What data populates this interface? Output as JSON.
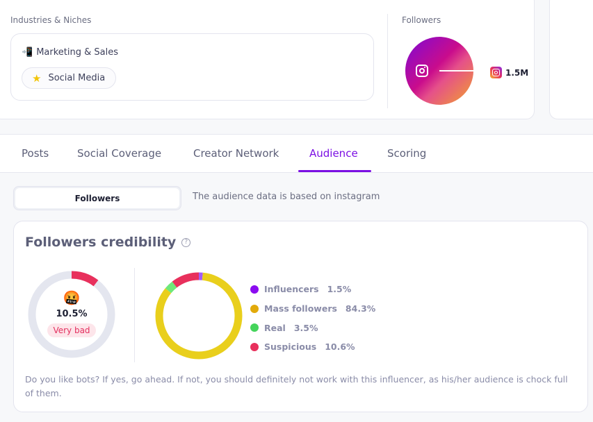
{
  "industries": {
    "label": "Industries & Niches",
    "category": {
      "emoji": "📲",
      "label": "Marketing & Sales"
    },
    "chip": {
      "icon": "star-icon",
      "label": "Social Media"
    }
  },
  "followers": {
    "label": "Followers",
    "platform": "instagram",
    "value": "1.5M"
  },
  "tabs": [
    {
      "label": "Posts"
    },
    {
      "label": "Social Coverage"
    },
    {
      "label": "Creator Network"
    },
    {
      "label": "Audience",
      "active": true
    },
    {
      "label": "Scoring"
    }
  ],
  "segment": {
    "active": "Followers"
  },
  "note": "The audience data is based on instagram",
  "credibility": {
    "title": "Followers credibility",
    "help": "?",
    "gauge": {
      "emoji": "🤬",
      "value": "10.5%",
      "fraction": 0.105,
      "badge": "Very bad",
      "color": "#e8305c",
      "track": "#e4e6ef"
    },
    "description": "Do you like bots? If yes, go ahead. If not, you should definitely not work with this influencer, as his/her audience is chock full of them."
  },
  "chart_data": {
    "type": "pie",
    "series": [
      {
        "name": "Influencers",
        "value": 1.5,
        "label": "1.5%",
        "color": "#8b0cf0",
        "ring": "#a35cf7"
      },
      {
        "name": "Mass followers",
        "value": 84.3,
        "label": "84.3%",
        "color": "#e2aa0b",
        "ring": "#e9cf1c"
      },
      {
        "name": "Real",
        "value": 3.5,
        "label": "3.5%",
        "color": "#45d45b",
        "ring": "#6ee87a"
      },
      {
        "name": "Suspicious",
        "value": 10.6,
        "label": "10.6%",
        "color": "#e8305c",
        "ring": "#e8305c"
      }
    ]
  }
}
